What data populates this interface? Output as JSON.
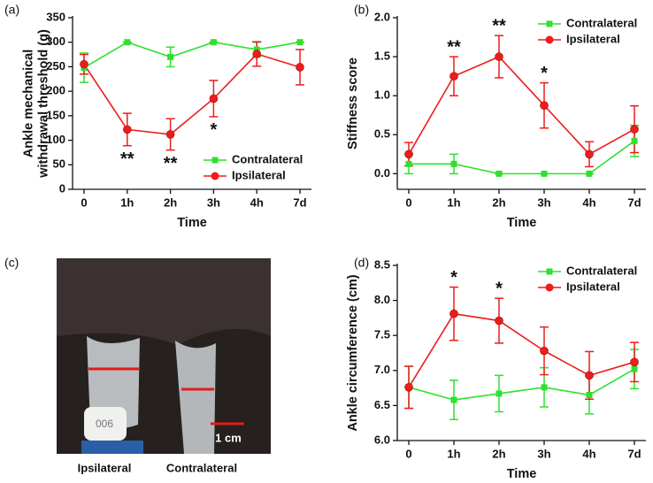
{
  "chart_data": [
    {
      "type": "line",
      "panel_label": "(a)",
      "xlabel": "Time",
      "ylabel": [
        "Ankle mechanical",
        "withdrawal threshold (g)"
      ],
      "categories": [
        "0",
        "1h",
        "2h",
        "3h",
        "4h",
        "7d"
      ],
      "ylim": [
        0,
        350
      ],
      "yticks": [
        0,
        50,
        100,
        150,
        200,
        250,
        300,
        350
      ],
      "legend": "lower right",
      "series": [
        {
          "name": "Contralateral",
          "color": "#2fe02f",
          "marker": "square",
          "values": [
            248,
            300,
            270,
            300,
            285,
            300
          ],
          "errors": [
            30,
            0,
            20,
            0,
            15,
            0
          ]
        },
        {
          "name": "Ipsilateral",
          "color": "#ee1c1c",
          "marker": "circle",
          "values": [
            255,
            122,
            112,
            185,
            276,
            249
          ],
          "errors": [
            20,
            33,
            32,
            37,
            25,
            36
          ]
        }
      ],
      "annotations": [
        {
          "text": "**",
          "x": "1h"
        },
        {
          "text": "**",
          "x": "2h"
        },
        {
          "text": "*",
          "x": "3h"
        }
      ]
    },
    {
      "type": "line",
      "panel_label": "(b)",
      "xlabel": "Time",
      "ylabel": [
        "Stiffness score"
      ],
      "categories": [
        "0",
        "1h",
        "2h",
        "3h",
        "4h",
        "7d"
      ],
      "ylim": [
        -0.2,
        2.0
      ],
      "yticks": [
        {
          "value": 0,
          "label": "0.0"
        },
        0.5,
        {
          "value": 1,
          "label": "1.0"
        },
        1.5,
        {
          "value": 2,
          "label": "2.0"
        }
      ],
      "legend": "upper right",
      "series": [
        {
          "name": "Contralateral",
          "color": "#2fe02f",
          "marker": "square",
          "values": [
            0.125,
            0.125,
            0,
            0,
            0,
            0.42
          ],
          "errors": [
            0.125,
            0.125,
            0,
            0,
            0,
            0.2
          ]
        },
        {
          "name": "Ipsilateral",
          "color": "#ee1c1c",
          "marker": "circle",
          "values": [
            0.25,
            1.25,
            1.5,
            0.875,
            0.25,
            0.57
          ],
          "errors": [
            0.15,
            0.25,
            0.27,
            0.29,
            0.16,
            0.3
          ]
        }
      ],
      "annotations": [
        {
          "text": "**",
          "x": "1h"
        },
        {
          "text": "**",
          "x": "2h"
        },
        {
          "text": "*",
          "x": "3h"
        }
      ]
    },
    {
      "type": "line",
      "panel_label": "(d)",
      "xlabel": "Time",
      "ylabel": [
        "Ankle circumference (cm)"
      ],
      "categories": [
        "0",
        "1h",
        "2h",
        "3h",
        "4h",
        "7d"
      ],
      "ylim": [
        6.0,
        8.5
      ],
      "yticks": [
        {
          "value": 6,
          "label": "6.0"
        },
        6.5,
        {
          "value": 7,
          "label": "7.0"
        },
        7.5,
        {
          "value": 8,
          "label": "8.0"
        },
        8.5
      ],
      "legend": "upper right",
      "series": [
        {
          "name": "Contralateral",
          "color": "#2fe02f",
          "marker": "square",
          "values": [
            6.76,
            6.58,
            6.67,
            6.76,
            6.65,
            7.02
          ],
          "errors": [
            0.3,
            0.28,
            0.26,
            0.28,
            0.27,
            0.28
          ]
        },
        {
          "name": "Ipsilateral",
          "color": "#ee1c1c",
          "marker": "circle",
          "values": [
            6.76,
            7.81,
            7.71,
            7.28,
            6.93,
            7.12
          ],
          "errors": [
            0.3,
            0.38,
            0.32,
            0.34,
            0.34,
            0.28
          ]
        }
      ],
      "annotations": [
        {
          "text": "*",
          "x": "1h"
        },
        {
          "text": "*",
          "x": "2h"
        }
      ]
    }
  ],
  "photo_panel": {
    "panel_label": "(c)",
    "tag_text": "006",
    "scale_bar_label": "1 cm",
    "labels": [
      "Ipsilateral",
      "Contralateral"
    ]
  }
}
